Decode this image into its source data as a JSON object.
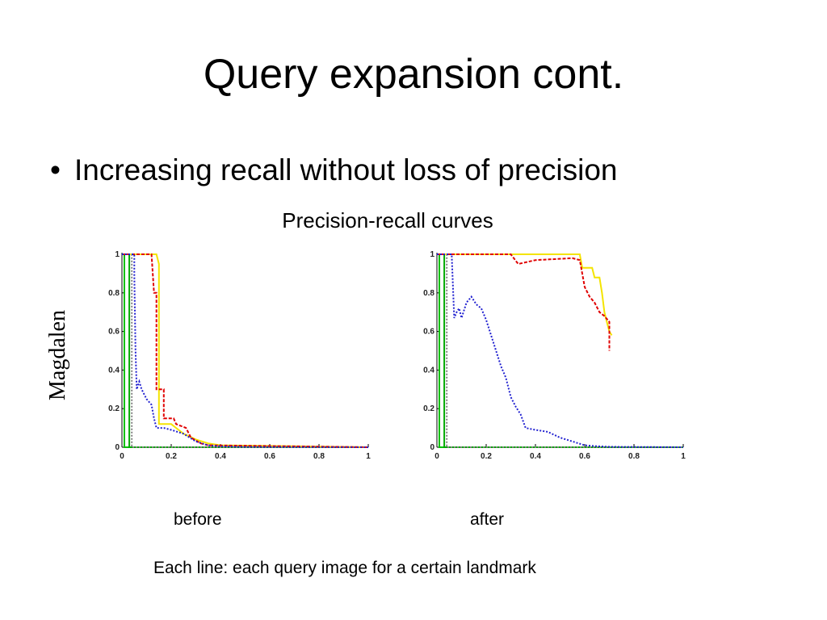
{
  "slide": {
    "title": "Query expansion cont.",
    "bullet": "Increasing recall without loss of precision",
    "subtitle": "Precision-recall curves",
    "caption_before": "before",
    "caption_after": "after",
    "footnote": "Each line:  each query image for a certain landmark"
  },
  "chart_data": [
    {
      "type": "line",
      "title": "",
      "xlabel": "",
      "ylabel": "Magdalen",
      "xlim": [
        0,
        1
      ],
      "ylim": [
        0,
        1
      ],
      "xticks": [
        "0",
        "0.2",
        "0.4",
        "0.6",
        "0.8",
        "1"
      ],
      "yticks": [
        "0",
        "0.2",
        "0.4",
        "0.6",
        "0.8",
        "1"
      ],
      "grid": false,
      "series": [
        {
          "color": "#00c000",
          "dash": "solid",
          "points": [
            [
              0,
              1
            ],
            [
              0.01,
              1
            ],
            [
              0.01,
              0
            ],
            [
              1,
              0
            ]
          ]
        },
        {
          "color": "#00aa00",
          "dash": "solid",
          "points": [
            [
              0,
              1
            ],
            [
              0.03,
              1
            ],
            [
              0.03,
              0
            ],
            [
              1,
              0
            ]
          ]
        },
        {
          "color": "#808080",
          "dash": "dotted",
          "points": [
            [
              0,
              1
            ],
            [
              0.04,
              1
            ],
            [
              0.04,
              0
            ],
            [
              1,
              0
            ]
          ]
        },
        {
          "color": "#f4e400",
          "dash": "solid",
          "points": [
            [
              0,
              1
            ],
            [
              0.14,
              1
            ],
            [
              0.15,
              0.95
            ],
            [
              0.15,
              0.12
            ],
            [
              0.2,
              0.12
            ],
            [
              0.22,
              0.1
            ],
            [
              0.25,
              0.07
            ],
            [
              0.3,
              0.04
            ],
            [
              0.35,
              0.02
            ],
            [
              0.4,
              0.01
            ],
            [
              1,
              0
            ]
          ]
        },
        {
          "color": "#e00000",
          "dash": "dashed",
          "points": [
            [
              0,
              1
            ],
            [
              0.12,
              1
            ],
            [
              0.13,
              0.8
            ],
            [
              0.14,
              0.8
            ],
            [
              0.14,
              0.3
            ],
            [
              0.17,
              0.3
            ],
            [
              0.17,
              0.15
            ],
            [
              0.21,
              0.15
            ],
            [
              0.22,
              0.12
            ],
            [
              0.26,
              0.1
            ],
            [
              0.28,
              0.05
            ],
            [
              0.32,
              0.02
            ],
            [
              0.35,
              0.01
            ],
            [
              1,
              0
            ]
          ]
        },
        {
          "color": "#2020d0",
          "dash": "dotted",
          "points": [
            [
              0,
              1
            ],
            [
              0.05,
              1
            ],
            [
              0.05,
              0.9
            ],
            [
              0.055,
              0.5
            ],
            [
              0.06,
              0.3
            ],
            [
              0.07,
              0.34
            ],
            [
              0.08,
              0.3
            ],
            [
              0.1,
              0.25
            ],
            [
              0.12,
              0.22
            ],
            [
              0.13,
              0.15
            ],
            [
              0.14,
              0.1
            ],
            [
              0.17,
              0.1
            ],
            [
              0.2,
              0.09
            ],
            [
              0.25,
              0.07
            ],
            [
              0.3,
              0.03
            ],
            [
              0.35,
              0.01
            ],
            [
              0.4,
              0.005
            ],
            [
              0.5,
              0.002
            ],
            [
              1,
              0
            ]
          ]
        }
      ]
    },
    {
      "type": "line",
      "title": "",
      "xlabel": "",
      "ylabel": "",
      "xlim": [
        0,
        1
      ],
      "ylim": [
        0,
        1
      ],
      "xticks": [
        "0",
        "0.2",
        "0.4",
        "0.6",
        "0.8",
        "1"
      ],
      "yticks": [
        "0",
        "0.2",
        "0.4",
        "0.6",
        "0.8",
        "1"
      ],
      "grid": false,
      "series": [
        {
          "color": "#00c000",
          "dash": "solid",
          "points": [
            [
              0,
              1
            ],
            [
              0.01,
              1
            ],
            [
              0.01,
              0
            ],
            [
              1,
              0
            ]
          ]
        },
        {
          "color": "#00aa00",
          "dash": "solid",
          "points": [
            [
              0,
              1
            ],
            [
              0.03,
              1
            ],
            [
              0.03,
              0
            ],
            [
              1,
              0
            ]
          ]
        },
        {
          "color": "#808080",
          "dash": "dotted",
          "points": [
            [
              0,
              1
            ],
            [
              0.04,
              1
            ],
            [
              0.04,
              0
            ],
            [
              1,
              0
            ]
          ]
        },
        {
          "color": "#f4e400",
          "dash": "solid",
          "points": [
            [
              0,
              1
            ],
            [
              0.58,
              1
            ],
            [
              0.59,
              0.93
            ],
            [
              0.63,
              0.93
            ],
            [
              0.64,
              0.88
            ],
            [
              0.66,
              0.88
            ],
            [
              0.67,
              0.8
            ],
            [
              0.68,
              0.7
            ],
            [
              0.69,
              0.65
            ],
            [
              0.7,
              0.6
            ],
            [
              0.71,
              0.58
            ]
          ]
        },
        {
          "color": "#e00000",
          "dash": "dashed",
          "points": [
            [
              0,
              1
            ],
            [
              0.3,
              1
            ],
            [
              0.33,
              0.95
            ],
            [
              0.4,
              0.97
            ],
            [
              0.55,
              0.98
            ],
            [
              0.58,
              0.97
            ],
            [
              0.6,
              0.83
            ],
            [
              0.62,
              0.78
            ],
            [
              0.64,
              0.75
            ],
            [
              0.66,
              0.7
            ],
            [
              0.68,
              0.68
            ],
            [
              0.7,
              0.65
            ],
            [
              0.7,
              0.5
            ]
          ]
        },
        {
          "color": "#2020d0",
          "dash": "dotted",
          "points": [
            [
              0,
              1
            ],
            [
              0.06,
              1
            ],
            [
              0.07,
              0.67
            ],
            [
              0.08,
              0.7
            ],
            [
              0.09,
              0.72
            ],
            [
              0.1,
              0.67
            ],
            [
              0.12,
              0.75
            ],
            [
              0.14,
              0.78
            ],
            [
              0.16,
              0.74
            ],
            [
              0.18,
              0.72
            ],
            [
              0.2,
              0.66
            ],
            [
              0.22,
              0.58
            ],
            [
              0.24,
              0.5
            ],
            [
              0.26,
              0.42
            ],
            [
              0.28,
              0.36
            ],
            [
              0.3,
              0.26
            ],
            [
              0.32,
              0.21
            ],
            [
              0.34,
              0.17
            ],
            [
              0.36,
              0.1
            ],
            [
              0.4,
              0.09
            ],
            [
              0.45,
              0.08
            ],
            [
              0.5,
              0.05
            ],
            [
              0.55,
              0.03
            ],
            [
              0.6,
              0.01
            ],
            [
              0.65,
              0.005
            ],
            [
              0.7,
              0.002
            ],
            [
              1,
              0
            ]
          ]
        }
      ]
    }
  ]
}
